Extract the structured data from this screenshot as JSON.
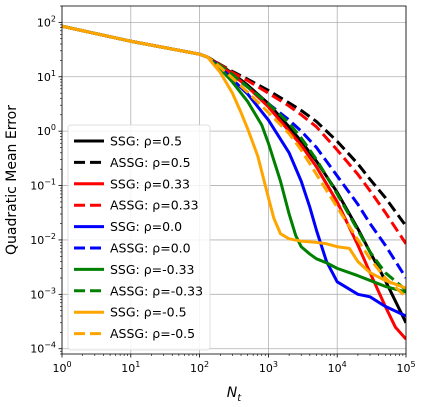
{
  "chart_data": {
    "type": "line",
    "title": "",
    "xlabel_main": "N",
    "xlabel_sub": "t",
    "ylabel": "Quadratic Mean Error",
    "xscale": "log",
    "yscale": "log",
    "xlim": [
      1,
      100000
    ],
    "ylim": [
      8e-05,
      200
    ],
    "grid": true,
    "legend_placement": "lower-left",
    "xticks": [
      {
        "value": 1,
        "base": "10",
        "exp": "0"
      },
      {
        "value": 10,
        "base": "10",
        "exp": "1"
      },
      {
        "value": 100,
        "base": "10",
        "exp": "2"
      },
      {
        "value": 1000,
        "base": "10",
        "exp": "3"
      },
      {
        "value": 10000,
        "base": "10",
        "exp": "4"
      },
      {
        "value": 100000,
        "base": "10",
        "exp": "5"
      }
    ],
    "yticks": [
      {
        "value": 0.0001,
        "base": "10",
        "exp": "−4"
      },
      {
        "value": 0.001,
        "base": "10",
        "exp": "−3"
      },
      {
        "value": 0.01,
        "base": "10",
        "exp": "−2"
      },
      {
        "value": 0.1,
        "base": "10",
        "exp": "−1"
      },
      {
        "value": 1,
        "base": "10",
        "exp": "0"
      },
      {
        "value": 10,
        "base": "10",
        "exp": "1"
      },
      {
        "value": 100,
        "base": "10",
        "exp": "2"
      }
    ],
    "series": [
      {
        "name": "SSG: ρ=0.5",
        "color": "#000000",
        "dash": "solid",
        "x": [
          1,
          10,
          100,
          130,
          200,
          300,
          500,
          1000,
          2000,
          3000,
          5000,
          10000,
          20000,
          30000,
          50000,
          100000
        ],
        "y": [
          85,
          45,
          26,
          23,
          16.5,
          11.5,
          7,
          3.2,
          1.2,
          0.65,
          0.28,
          0.075,
          0.016,
          0.006,
          0.0018,
          0.0003
        ]
      },
      {
        "name": "ASSG: ρ=0.5",
        "color": "#000000",
        "dash": "dashed",
        "x": [
          1,
          10,
          100,
          130,
          200,
          300,
          500,
          1000,
          2000,
          3000,
          5000,
          10000,
          20000,
          30000,
          50000,
          100000
        ],
        "y": [
          85,
          45,
          26,
          23,
          16.8,
          12.5,
          9,
          5.6,
          3.3,
          2.4,
          1.5,
          0.65,
          0.25,
          0.13,
          0.06,
          0.018
        ]
      },
      {
        "name": "SSG: ρ=0.33",
        "color": "#ff0000",
        "dash": "solid",
        "x": [
          1,
          10,
          100,
          130,
          200,
          300,
          500,
          1000,
          2000,
          3000,
          5000,
          10000,
          20000,
          30000,
          50000,
          70000,
          100000
        ],
        "y": [
          85,
          45,
          26,
          23,
          16,
          11,
          6.5,
          2.8,
          1,
          0.55,
          0.22,
          0.05,
          0.008,
          0.0025,
          0.0006,
          0.00025,
          0.00015
        ]
      },
      {
        "name": "ASSG: ρ=0.33",
        "color": "#ff0000",
        "dash": "dashed",
        "x": [
          1,
          10,
          100,
          130,
          200,
          300,
          500,
          1000,
          2000,
          3000,
          5000,
          10000,
          20000,
          30000,
          50000,
          100000
        ],
        "y": [
          85,
          45,
          26,
          23,
          16.5,
          12,
          8.5,
          5,
          2.9,
          2,
          1.2,
          0.45,
          0.16,
          0.08,
          0.032,
          0.0085
        ]
      },
      {
        "name": "SSG: ρ=0.0",
        "color": "#0000ff",
        "dash": "solid",
        "x": [
          1,
          10,
          100,
          130,
          200,
          300,
          500,
          1000,
          2000,
          3000,
          4000,
          5000,
          7000,
          10000,
          20000,
          30000,
          50000,
          100000
        ],
        "y": [
          85,
          45,
          26,
          23,
          15,
          9,
          4.8,
          1.6,
          0.4,
          0.12,
          0.04,
          0.015,
          0.004,
          0.0017,
          0.001,
          0.0009,
          0.0006,
          0.0004
        ]
      },
      {
        "name": "ASSG: ρ=0.0",
        "color": "#0000ff",
        "dash": "dashed",
        "x": [
          1,
          10,
          100,
          130,
          200,
          300,
          500,
          1000,
          2000,
          3000,
          5000,
          10000,
          20000,
          30000,
          50000,
          100000
        ],
        "y": [
          85,
          45,
          26,
          23,
          15.5,
          10.5,
          6.5,
          3.2,
          1.6,
          1,
          0.5,
          0.15,
          0.045,
          0.02,
          0.008,
          0.002
        ]
      },
      {
        "name": "SSG: ρ=-0.33",
        "color": "#008000",
        "dash": "solid",
        "x": [
          1,
          10,
          100,
          130,
          200,
          300,
          500,
          800,
          1000,
          1500,
          2000,
          2500,
          3000,
          4000,
          5000,
          7000,
          10000,
          20000,
          30000,
          50000,
          100000
        ],
        "y": [
          85,
          45,
          26,
          23,
          14,
          8,
          3.5,
          1.3,
          0.6,
          0.12,
          0.03,
          0.012,
          0.0075,
          0.0055,
          0.0045,
          0.0038,
          0.003,
          0.0022,
          0.0018,
          0.0014,
          0.0011
        ]
      },
      {
        "name": "ASSG: ρ=-0.33",
        "color": "#008000",
        "dash": "dashed",
        "x": [
          1,
          10,
          100,
          130,
          200,
          300,
          500,
          1000,
          2000,
          3000,
          5000,
          10000,
          20000,
          30000,
          50000,
          100000
        ],
        "y": [
          85,
          45,
          26,
          23,
          16,
          11,
          6.5,
          3.2,
          1.4,
          0.75,
          0.3,
          0.07,
          0.015,
          0.006,
          0.0025,
          0.0012
        ]
      },
      {
        "name": "SSG: ρ=-0.5",
        "color": "#ffa500",
        "dash": "solid",
        "x": [
          1,
          10,
          100,
          130,
          200,
          300,
          400,
          500,
          700,
          1000,
          1200,
          1500,
          2000,
          3000,
          5000,
          7000,
          10000,
          15000,
          20000,
          30000,
          50000,
          100000
        ],
        "y": [
          85,
          45,
          26,
          23,
          12,
          5,
          2.2,
          1.1,
          0.35,
          0.06,
          0.025,
          0.013,
          0.0105,
          0.0095,
          0.009,
          0.0085,
          0.0075,
          0.007,
          0.004,
          0.0025,
          0.0018,
          0.0013
        ]
      },
      {
        "name": "ASSG: ρ=-0.5",
        "color": "#ffa500",
        "dash": "dashed",
        "x": [
          1,
          10,
          100,
          130,
          200,
          300,
          500,
          1000,
          2000,
          3000,
          5000,
          10000,
          20000,
          30000,
          50000,
          100000
        ],
        "y": [
          85,
          45,
          26,
          23,
          15,
          9.5,
          5.2,
          2.2,
          0.9,
          0.45,
          0.16,
          0.04,
          0.01,
          0.0045,
          0.002,
          0.0009
        ]
      }
    ]
  }
}
